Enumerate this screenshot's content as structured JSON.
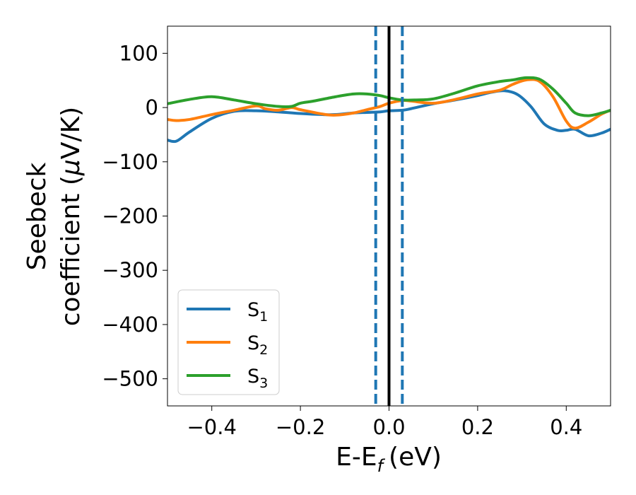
{
  "chart_data": {
    "type": "line",
    "xlabel": "E-E",
    "xlabel_sub": "f",
    "xlabel_unit": "(eV)",
    "ylabel_line1": "Seebeck",
    "ylabel_line2_text": "coefficient  (",
    "ylabel_line2_mu": "μ",
    "ylabel_line2_unit": "V/K)",
    "xlim": [
      -0.5,
      0.5
    ],
    "ylim": [
      -550,
      150
    ],
    "x_ticks": [
      -0.4,
      -0.2,
      0.0,
      0.2,
      0.4
    ],
    "x_tick_labels": [
      "−0.4",
      "−0.2",
      "0.0",
      "0.2",
      "0.4"
    ],
    "y_ticks": [
      100,
      0,
      -100,
      -200,
      -300,
      -400,
      -500
    ],
    "y_tick_labels": [
      "100",
      "0",
      "−100",
      "−200",
      "−300",
      "−400",
      "−500"
    ],
    "grid": false,
    "legend_position": "lower-left",
    "vertical_lines": [
      {
        "x": -0.03,
        "style": "dashed",
        "color": "#1f77b4"
      },
      {
        "x": 0.0,
        "style": "solid",
        "color": "#000000"
      },
      {
        "x": 0.03,
        "style": "dashed",
        "color": "#1f77b4"
      }
    ],
    "series": [
      {
        "name": "S",
        "name_sub": "1",
        "color": "#1f77b4",
        "x": [
          -0.5,
          -0.48,
          -0.45,
          -0.4,
          -0.35,
          -0.3,
          -0.25,
          -0.2,
          -0.15,
          -0.12,
          -0.08,
          -0.05,
          -0.02,
          0.0,
          0.03,
          0.05,
          0.1,
          0.15,
          0.2,
          0.23,
          0.26,
          0.29,
          0.32,
          0.35,
          0.38,
          0.4,
          0.42,
          0.45,
          0.48,
          0.5
        ],
        "y": [
          -60,
          -62,
          -45,
          -20,
          -7,
          -6,
          -8,
          -11,
          -13,
          -13,
          -10,
          -9,
          -8,
          -6,
          -5,
          -2,
          7,
          14,
          22,
          28,
          31,
          24,
          2,
          -30,
          -42,
          -42,
          -40,
          -52,
          -47,
          -40
        ]
      },
      {
        "name": "S",
        "name_sub": "2",
        "color": "#ff7f0e",
        "x": [
          -0.5,
          -0.48,
          -0.45,
          -0.4,
          -0.35,
          -0.3,
          -0.28,
          -0.25,
          -0.22,
          -0.2,
          -0.15,
          -0.12,
          -0.08,
          -0.05,
          -0.02,
          0.0,
          0.03,
          0.05,
          0.1,
          0.15,
          0.2,
          0.25,
          0.28,
          0.31,
          0.34,
          0.37,
          0.4,
          0.42,
          0.45,
          0.48,
          0.5
        ],
        "y": [
          -22,
          -24,
          -22,
          -13,
          -5,
          3,
          -2,
          -5,
          0,
          -4,
          -12,
          -14,
          -10,
          -4,
          2,
          8,
          13,
          12,
          8,
          15,
          25,
          32,
          43,
          51,
          48,
          20,
          -25,
          -38,
          -27,
          -12,
          -5
        ]
      },
      {
        "name": "S",
        "name_sub": "3",
        "color": "#2ca02c",
        "x": [
          -0.5,
          -0.45,
          -0.4,
          -0.35,
          -0.3,
          -0.25,
          -0.22,
          -0.2,
          -0.17,
          -0.12,
          -0.08,
          -0.05,
          -0.02,
          0.0,
          0.03,
          0.06,
          0.1,
          0.15,
          0.2,
          0.25,
          0.28,
          0.31,
          0.34,
          0.37,
          0.4,
          0.42,
          0.45,
          0.48,
          0.5
        ],
        "y": [
          7,
          15,
          20,
          14,
          7,
          2,
          2,
          8,
          12,
          20,
          25,
          25,
          22,
          18,
          14,
          14,
          16,
          27,
          40,
          48,
          51,
          55,
          52,
          34,
          8,
          -10,
          -15,
          -10,
          -5
        ]
      }
    ]
  }
}
